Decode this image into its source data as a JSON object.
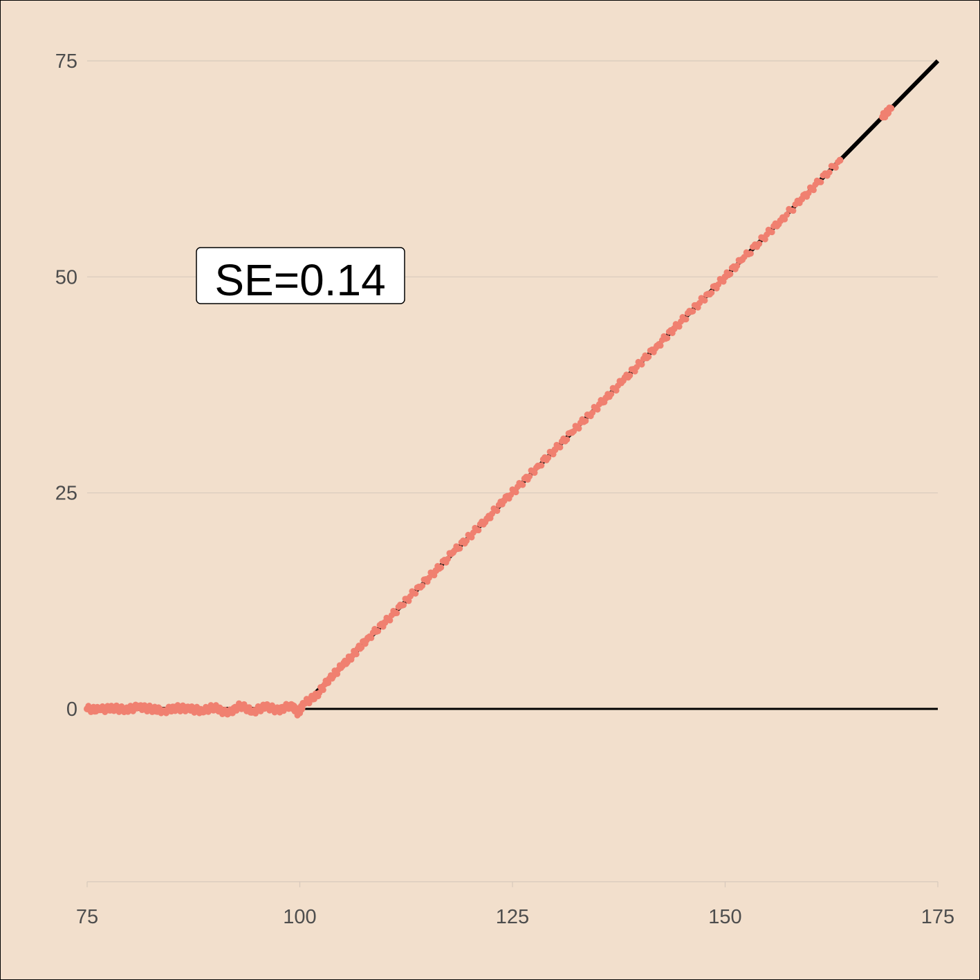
{
  "chart_data": {
    "type": "scatter",
    "title": "",
    "xlabel": "",
    "ylabel": "",
    "xlim": [
      75,
      175
    ],
    "ylim": [
      -20,
      75
    ],
    "x_ticks": [
      75,
      100,
      125,
      150,
      175
    ],
    "y_ticks": [
      0,
      25,
      50,
      75
    ],
    "x_tick_labels": [
      "75",
      "100",
      "125",
      "150",
      "175"
    ],
    "y_tick_labels": [
      "0",
      "25",
      "50",
      "75"
    ],
    "grid": "horizontal major",
    "reference_line": {
      "x": [
        75,
        100,
        175
      ],
      "y": [
        0,
        0,
        75
      ],
      "color": "#000000"
    },
    "zero_line": {
      "y": 0,
      "x": [
        75,
        175
      ],
      "color": "#000000"
    },
    "series": [
      {
        "color": "#f08070",
        "points": [
          [
            75.0,
            0.0
          ],
          [
            76.5,
            -0.1
          ],
          [
            78.0,
            0.1
          ],
          [
            79.5,
            -0.1
          ],
          [
            81.0,
            0.2
          ],
          [
            82.5,
            0.0
          ],
          [
            84.0,
            -0.2
          ],
          [
            85.5,
            0.1
          ],
          [
            87.0,
            0.0
          ],
          [
            88.5,
            -0.2
          ],
          [
            90.0,
            0.2
          ],
          [
            91.5,
            -0.6
          ],
          [
            93.0,
            0.4
          ],
          [
            94.5,
            -0.3
          ],
          [
            96.0,
            0.3
          ],
          [
            97.5,
            -0.2
          ],
          [
            99.0,
            0.5
          ],
          [
            99.8,
            -0.5
          ],
          [
            100.5,
            0.6
          ],
          [
            102.0,
            1.6
          ],
          [
            103.5,
            3.5
          ],
          [
            105.0,
            5.0
          ],
          [
            106.5,
            6.5
          ],
          [
            108.0,
            8.2
          ],
          [
            110.0,
            10.0
          ],
          [
            112.0,
            12.0
          ],
          [
            114.0,
            14.1
          ],
          [
            116.0,
            16.0
          ],
          [
            118.0,
            18.1
          ],
          [
            120.0,
            20.0
          ],
          [
            122.0,
            22.0
          ],
          [
            124.0,
            24.1
          ],
          [
            126.0,
            26.0
          ],
          [
            128.0,
            28.1
          ],
          [
            130.0,
            30.0
          ],
          [
            132.0,
            32.0
          ],
          [
            134.0,
            34.0
          ],
          [
            136.0,
            36.0
          ],
          [
            138.0,
            38.0
          ],
          [
            140.0,
            40.0
          ],
          [
            142.0,
            42.0
          ],
          [
            144.0,
            44.0
          ],
          [
            146.0,
            46.0
          ],
          [
            148.0,
            48.0
          ],
          [
            150.0,
            50.0
          ],
          [
            152.0,
            52.0
          ],
          [
            154.5,
            54.5
          ],
          [
            156.5,
            56.5
          ],
          [
            159.0,
            59.0
          ],
          [
            161.0,
            61.0
          ],
          [
            163.5,
            63.5
          ],
          [
            168.5,
            68.5
          ],
          [
            169.5,
            69.5
          ]
        ]
      }
    ],
    "annotation": {
      "text": "SE=0.14",
      "x": 87.5,
      "y": 50
    }
  }
}
